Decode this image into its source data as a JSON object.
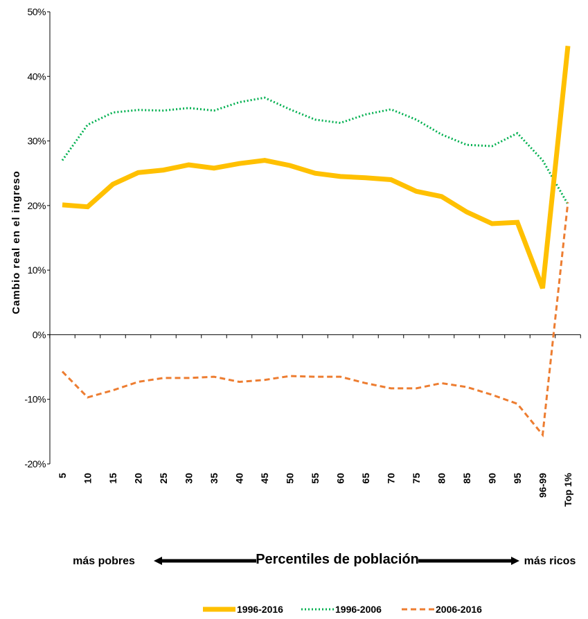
{
  "chart_data": {
    "type": "line",
    "title": "",
    "xlabel": "Percentiles de población",
    "ylabel": "Cambio real en el ingreso",
    "categories": [
      "5",
      "10",
      "15",
      "20",
      "25",
      "30",
      "35",
      "40",
      "45",
      "50",
      "55",
      "60",
      "65",
      "70",
      "75",
      "80",
      "85",
      "90",
      "95",
      "96-99",
      "Top 1%"
    ],
    "yticks": [
      "50%",
      "40%",
      "30%",
      "20%",
      "10%",
      "0%",
      "-10%",
      "-20%"
    ],
    "ylim": [
      -0.2,
      0.5
    ],
    "grid": false,
    "legend_position": "bottom",
    "left_note": "más pobres",
    "right_note": "más ricos",
    "series": [
      {
        "name": "1996-2016",
        "color": "#FFC000",
        "style": "solid",
        "values": [
          0.201,
          0.198,
          0.233,
          0.251,
          0.255,
          0.263,
          0.258,
          0.265,
          0.27,
          0.262,
          0.25,
          0.245,
          0.243,
          0.24,
          0.222,
          0.214,
          0.19,
          0.172,
          0.174,
          0.072,
          0.447
        ]
      },
      {
        "name": "1996-2006",
        "color": "#00B050",
        "style": "dotted",
        "values": [
          0.27,
          0.325,
          0.344,
          0.348,
          0.347,
          0.351,
          0.347,
          0.36,
          0.367,
          0.349,
          0.333,
          0.328,
          0.341,
          0.349,
          0.333,
          0.31,
          0.294,
          0.292,
          0.312,
          0.27,
          0.202
        ]
      },
      {
        "name": "2006-2016",
        "color": "#ED7D31",
        "style": "dashed",
        "values": [
          -0.057,
          -0.097,
          -0.086,
          -0.073,
          -0.067,
          -0.067,
          -0.065,
          -0.073,
          -0.07,
          -0.064,
          -0.065,
          -0.065,
          -0.075,
          -0.083,
          -0.083,
          -0.075,
          -0.081,
          -0.093,
          -0.107,
          -0.155,
          0.205
        ]
      }
    ]
  }
}
